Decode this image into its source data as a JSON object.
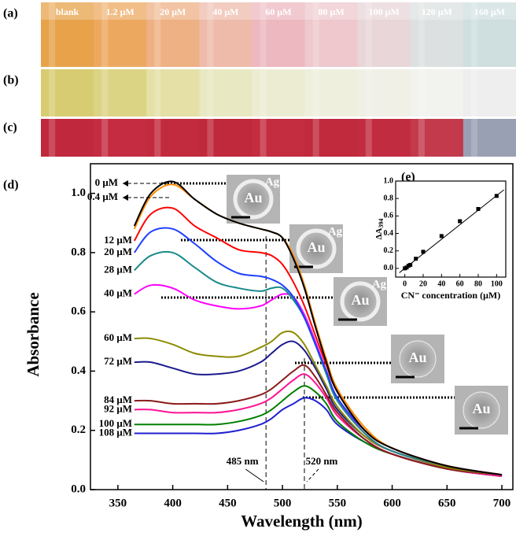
{
  "photo_panels": [
    {
      "label": "(a)",
      "vials": [
        "blank",
        "1.2 μM",
        "20 μM",
        "40 μM",
        "60 μM",
        "80 μM",
        "100 μM",
        "120 μM",
        "160 μM"
      ]
    },
    {
      "label": "(b)"
    },
    {
      "label": "(c)"
    }
  ],
  "panel_labels": {
    "d": "(d)",
    "e": "(e)"
  },
  "tem_images": [
    {
      "labels": [
        "Au",
        "Ag"
      ]
    },
    {
      "labels": [
        "Au",
        "Ag"
      ]
    },
    {
      "labels": [
        "Au",
        "Ag"
      ]
    },
    {
      "labels": [
        "Au"
      ]
    },
    {
      "labels": [
        "Au"
      ]
    }
  ],
  "chart_data": [
    {
      "type": "line",
      "x_label": "Wavelength (nm)",
      "y_label": "Absorbance",
      "x": [
        365,
        380,
        400,
        420,
        440,
        460,
        480,
        490,
        500,
        510,
        520,
        530,
        540,
        550,
        575,
        600,
        650,
        700
      ],
      "xlim": [
        325,
        710
      ],
      "xticks": [
        350,
        400,
        450,
        500,
        550,
        600,
        650,
        700
      ],
      "ylim": [
        0,
        1.1
      ],
      "yticks": [
        {
          "value": 0,
          "label": "0.0"
        },
        {
          "value": 0.2,
          "label": "0.2"
        },
        {
          "value": 0.4,
          "label": "0.4"
        },
        {
          "value": 0.6,
          "label": "0.6"
        },
        {
          "value": 0.8,
          "label": "0.8"
        },
        {
          "value": 1,
          "label": "1.0"
        }
      ],
      "vlines": [
        {
          "x": 485,
          "label": "485 nm"
        },
        {
          "x": 520,
          "label": "520 nm"
        }
      ],
      "series": [
        {
          "name": "0 μM",
          "color": "#000000",
          "values": [
            0.89,
            1.0,
            1.04,
            0.98,
            0.93,
            0.9,
            0.88,
            0.87,
            0.85,
            0.78,
            0.68,
            0.55,
            0.43,
            0.33,
            0.2,
            0.14,
            0.08,
            0.05
          ]
        },
        {
          "name": "0.4 μM",
          "color": "#ff8c00",
          "values": [
            0.88,
            0.99,
            1.03,
            0.98,
            0.93,
            0.9,
            0.88,
            0.87,
            0.85,
            0.79,
            0.69,
            0.56,
            0.44,
            0.34,
            0.21,
            0.14,
            0.08,
            0.05
          ]
        },
        {
          "name": "12 μM",
          "color": "#ff0000",
          "values": [
            0.84,
            0.93,
            0.95,
            0.89,
            0.85,
            0.81,
            0.8,
            0.79,
            0.76,
            0.7,
            0.62,
            0.52,
            0.42,
            0.33,
            0.2,
            0.14,
            0.08,
            0.05
          ]
        },
        {
          "name": "20 μM",
          "color": "#1f3fff",
          "values": [
            0.8,
            0.87,
            0.88,
            0.83,
            0.77,
            0.73,
            0.72,
            0.71,
            0.69,
            0.65,
            0.58,
            0.49,
            0.4,
            0.31,
            0.2,
            0.14,
            0.08,
            0.05
          ]
        },
        {
          "name": "28 μM",
          "color": "#1a8a8a",
          "values": [
            0.74,
            0.79,
            0.8,
            0.75,
            0.7,
            0.68,
            0.67,
            0.68,
            0.68,
            0.64,
            0.58,
            0.49,
            0.39,
            0.3,
            0.19,
            0.13,
            0.08,
            0.05
          ]
        },
        {
          "name": "40 μM",
          "color": "#ff00ff",
          "values": [
            0.66,
            0.69,
            0.68,
            0.64,
            0.62,
            0.61,
            0.62,
            0.64,
            0.66,
            0.65,
            0.59,
            0.5,
            0.4,
            0.31,
            0.19,
            0.13,
            0.08,
            0.05
          ]
        },
        {
          "name": "60 μM",
          "color": "#8b8b00",
          "values": [
            0.51,
            0.51,
            0.49,
            0.46,
            0.45,
            0.45,
            0.48,
            0.5,
            0.53,
            0.53,
            0.49,
            0.42,
            0.35,
            0.28,
            0.18,
            0.13,
            0.075,
            0.05
          ]
        },
        {
          "name": "72 μM",
          "color": "#1a1a8c",
          "values": [
            0.43,
            0.43,
            0.41,
            0.39,
            0.39,
            0.4,
            0.43,
            0.46,
            0.49,
            0.5,
            0.47,
            0.41,
            0.34,
            0.27,
            0.18,
            0.13,
            0.075,
            0.05
          ]
        },
        {
          "name": "84 μM",
          "color": "#8b1a1a",
          "values": [
            0.3,
            0.3,
            0.29,
            0.29,
            0.29,
            0.3,
            0.32,
            0.34,
            0.37,
            0.4,
            0.42,
            0.38,
            0.32,
            0.26,
            0.17,
            0.12,
            0.07,
            0.05
          ]
        },
        {
          "name": "92 μM",
          "color": "#ff1493",
          "values": [
            0.27,
            0.27,
            0.26,
            0.26,
            0.26,
            0.27,
            0.29,
            0.31,
            0.34,
            0.37,
            0.39,
            0.36,
            0.31,
            0.25,
            0.17,
            0.12,
            0.07,
            0.045
          ]
        },
        {
          "name": "100 μM",
          "color": "#008000",
          "values": [
            0.22,
            0.22,
            0.22,
            0.22,
            0.22,
            0.23,
            0.25,
            0.27,
            0.3,
            0.33,
            0.35,
            0.33,
            0.29,
            0.23,
            0.16,
            0.12,
            0.07,
            0.045
          ]
        },
        {
          "name": "108 μM",
          "color": "#2020d0",
          "values": [
            0.19,
            0.19,
            0.19,
            0.19,
            0.19,
            0.2,
            0.22,
            0.24,
            0.27,
            0.29,
            0.31,
            0.3,
            0.27,
            0.22,
            0.16,
            0.12,
            0.07,
            0.045
          ]
        }
      ]
    },
    {
      "type": "scatter",
      "x_label": "CN⁻ concentration (μM)",
      "y_label": "ΔA",
      "y_label_sub": "394",
      "x": [
        0,
        2,
        4,
        6,
        12,
        20,
        40,
        60,
        80,
        100
      ],
      "values": [
        0,
        0.01,
        0.03,
        0.04,
        0.11,
        0.19,
        0.37,
        0.54,
        0.68,
        0.83
      ],
      "fit": {
        "x": [
          -6,
          108
        ],
        "y": [
          -0.05,
          0.9
        ]
      },
      "xlim": [
        -10,
        110
      ],
      "xticks": [
        0,
        20,
        40,
        60,
        80,
        100
      ],
      "ylim": [
        -0.1,
        1.0
      ],
      "yticks": [
        {
          "value": 0,
          "label": "0.0"
        },
        {
          "value": 0.2,
          "label": "0.2"
        },
        {
          "value": 0.4,
          "label": "0.4"
        },
        {
          "value": 0.6,
          "label": "0.6"
        },
        {
          "value": 0.8,
          "label": "0.8"
        },
        {
          "value": 1,
          "label": "1.0"
        }
      ],
      "color": "#000000"
    }
  ]
}
